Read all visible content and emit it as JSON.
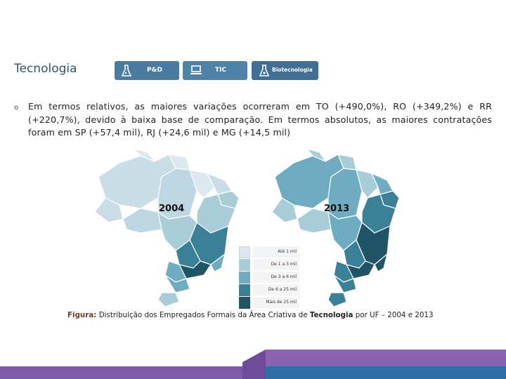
{
  "header": {
    "title": "Tecnologia",
    "tabs": [
      {
        "label": "P&D",
        "icon": "flask-icon"
      },
      {
        "label": "TIC",
        "icon": "laptop-icon"
      },
      {
        "label": "Biotecnologia",
        "icon": "beaker-icon"
      }
    ]
  },
  "body": {
    "bullet_marker": "o",
    "paragraph": "Em termos relativos, as maiores variações ocorreram em TO (+490,0%), RO (+349,2%) e RR (+220,7%), devido à baixa base de comparação. Em termos absolutos, as maiores contratações foram em SP (+57,4 mil), RJ (+24,6 mil) e MG (+14,5 mil)"
  },
  "maps": [
    {
      "year": "2004"
    },
    {
      "year": "2013"
    }
  ],
  "legend": {
    "items": [
      {
        "label": "Até 1 mil",
        "color": "#dbe8ef"
      },
      {
        "label": "De 1 a 3 mil",
        "color": "#a9ccd9"
      },
      {
        "label": "De 3 a 6 mil",
        "color": "#70acc1"
      },
      {
        "label": "De 6 a 25 mil",
        "color": "#3a8198"
      },
      {
        "label": "Mais de 25 mil",
        "color": "#1f5566"
      }
    ]
  },
  "caption": {
    "label": "Figura:",
    "text_before": "Distribuição dos Empregados Formais da Área Criativa de",
    "bold": "Tecnologia",
    "text_after": "por UF – 2004 e 2013"
  },
  "colors": {
    "title": "#2c5570",
    "tab": "#4a7ca0",
    "footer_purple": "#7f5aa8",
    "footer_blue": "#2e6ea6"
  }
}
